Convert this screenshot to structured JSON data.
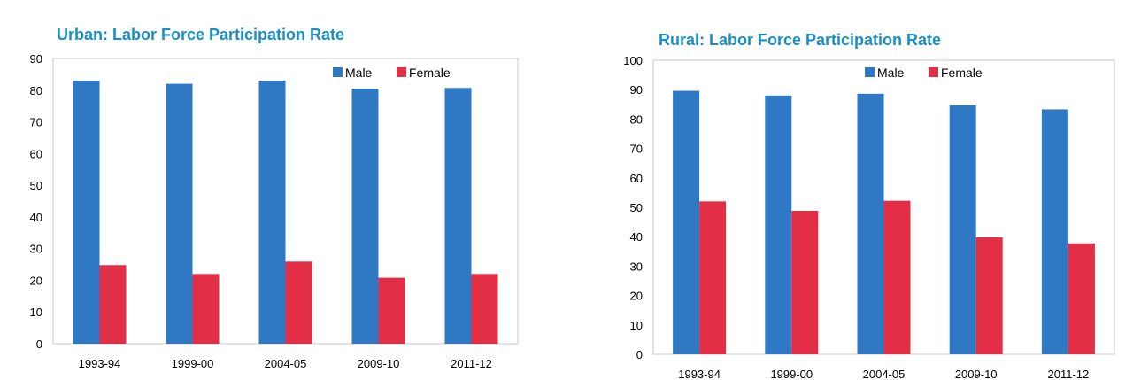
{
  "colors": {
    "title": "#1a8fc4",
    "male": "#2e78c4",
    "female": "#e32f45",
    "plot_border": "#c8c8c8"
  },
  "chart_data": [
    {
      "type": "bar",
      "title": "Urban: Labor Force Participation Rate",
      "xlabel": "",
      "ylabel": "",
      "categories": [
        "1993-94",
        "1999-00",
        "2004-05",
        "2009-10",
        "2011-12"
      ],
      "series": [
        {
          "name": "Male",
          "values": [
            83,
            82,
            83,
            80.5,
            80.7
          ]
        },
        {
          "name": "Female",
          "values": [
            24.8,
            22,
            25.9,
            20.8,
            22
          ]
        }
      ],
      "ylim": [
        0,
        90
      ],
      "yticks": [
        0,
        10,
        20,
        30,
        40,
        50,
        60,
        70,
        80,
        90
      ],
      "grid": false,
      "legend": "top-right"
    },
    {
      "type": "bar",
      "title": "Rural: Labor Force Participation Rate",
      "xlabel": "",
      "ylabel": "",
      "categories": [
        "1993-94",
        "1999-00",
        "2004-05",
        "2009-10",
        "2011-12"
      ],
      "series": [
        {
          "name": "Male",
          "values": [
            89.6,
            88,
            88.6,
            84.7,
            83.3
          ]
        },
        {
          "name": "Female",
          "values": [
            52,
            48.8,
            52.2,
            39.8,
            37.7
          ]
        }
      ],
      "ylim": [
        0,
        100
      ],
      "yticks": [
        0,
        10,
        20,
        30,
        40,
        50,
        60,
        70,
        80,
        90,
        100
      ],
      "grid": false,
      "legend": "top-right"
    }
  ]
}
